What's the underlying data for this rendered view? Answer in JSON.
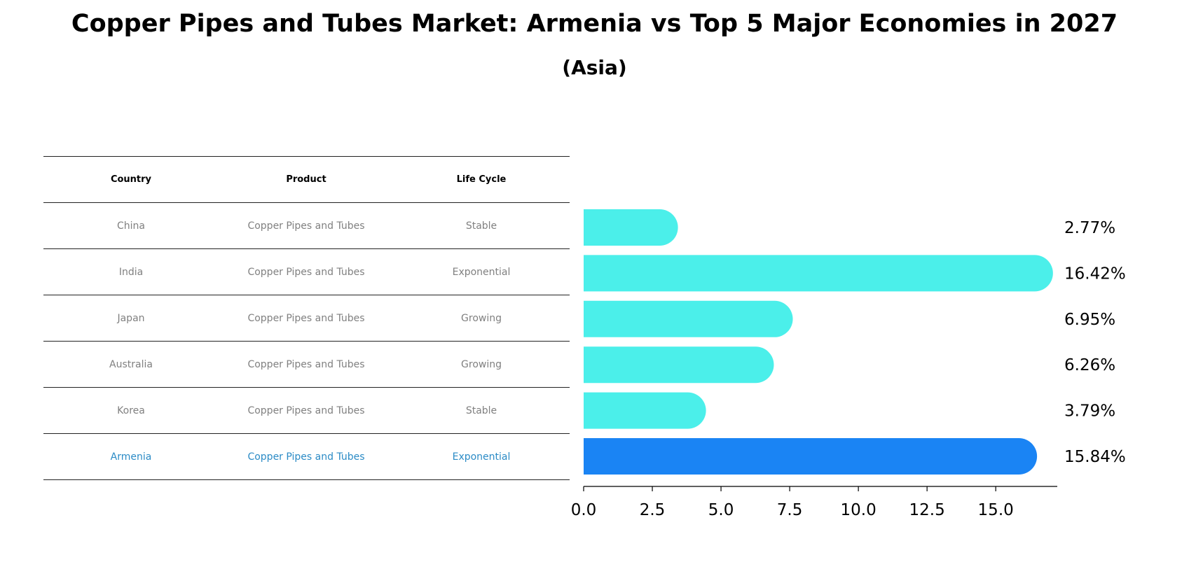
{
  "title": "Copper Pipes and Tubes Market: Armenia vs Top 5 Major Economies in 2027",
  "subtitle": "(Asia)",
  "table": {
    "headers": [
      "Country",
      "Product",
      "Life Cycle"
    ],
    "rows": [
      [
        "China",
        "Copper Pipes and Tubes",
        "Stable"
      ],
      [
        "India",
        "Copper Pipes and Tubes",
        "Exponential"
      ],
      [
        "Japan",
        "Copper Pipes and Tubes",
        "Growing"
      ],
      [
        "Australia",
        "Copper Pipes and Tubes",
        "Growing"
      ],
      [
        "Korea",
        "Copper Pipes and Tubes",
        "Stable"
      ],
      [
        "Armenia",
        "Copper Pipes and Tubes",
        "Exponential"
      ]
    ],
    "highlight_row_color": "#2b8bc6",
    "row_text_color": "#808080"
  },
  "chart_data": {
    "type": "bar",
    "orientation": "horizontal",
    "categories": [
      "China",
      "India",
      "Japan",
      "Australia",
      "Korea",
      "Armenia"
    ],
    "values": [
      2.77,
      16.42,
      6.95,
      6.26,
      3.79,
      15.84
    ],
    "value_labels": [
      "2.77%",
      "16.42%",
      "6.95%",
      "6.26%",
      "3.79%",
      "15.84%"
    ],
    "xlim": [
      0,
      17.24
    ],
    "xticks": [
      "0.0",
      "2.5",
      "5.0",
      "7.5",
      "10.0",
      "12.5",
      "15.0"
    ],
    "xtick_values": [
      0,
      2.5,
      5,
      7.5,
      10,
      12.5,
      15
    ],
    "colors": {
      "default": "#4befea",
      "highlight": "#1a84f4"
    },
    "highlight_index": 5,
    "grid": false
  }
}
